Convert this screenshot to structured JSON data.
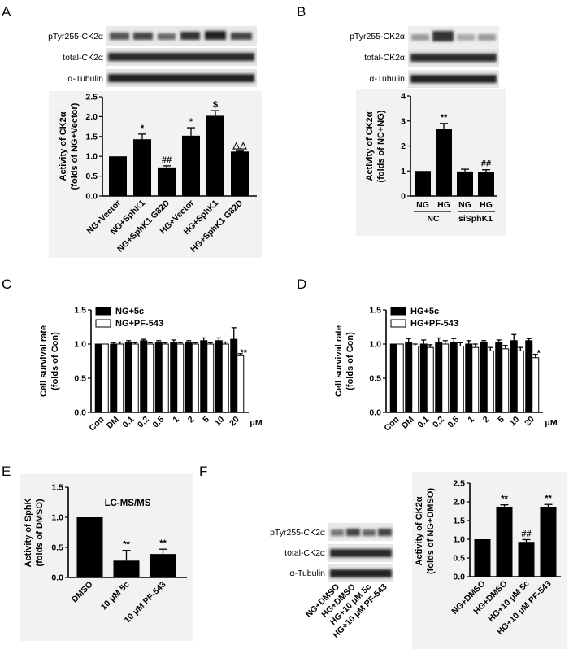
{
  "panels": {
    "A": {
      "label": "A",
      "blots": [
        "pTyr255-CK2α",
        "total-CK2α",
        "α-Tubulin"
      ],
      "ylabel": [
        "Activity of CK2α",
        "(folds of NG+Vector)"
      ],
      "yticks": [
        "0.0",
        "0.5",
        "1.0",
        "1.5",
        "2.0",
        "2.5"
      ]
    },
    "B": {
      "label": "B",
      "blots": [
        "pTyr255-CK2α",
        "total-CK2α",
        "α-Tubulin"
      ],
      "ylabel": [
        "Activity of CK2α",
        "(folds of NC+NG)"
      ],
      "yticks": [
        "0",
        "1",
        "2",
        "3",
        "4"
      ],
      "group_labels": [
        "NC",
        "siSphK1"
      ]
    },
    "C": {
      "label": "C",
      "ylabel": [
        "Cell survival rate",
        "(folds of Con)"
      ],
      "yticks": [
        "0.0",
        "0.5",
        "1.0",
        "1.5"
      ],
      "unit": "μM"
    },
    "D": {
      "label": "D",
      "ylabel": [
        "Cell survival rate",
        "(folds of Con)"
      ],
      "yticks": [
        "0.0",
        "0.5",
        "1.0",
        "1.5"
      ],
      "unit": "μM"
    },
    "E": {
      "label": "E",
      "ylabel": [
        "Activity of SphK",
        "(folds of DMSO)"
      ],
      "yticks": [
        "0.0",
        "0.5",
        "1.0",
        "1.5"
      ]
    },
    "F": {
      "label": "F",
      "blots": [
        "pTyr255-CK2α",
        "total-CK2α",
        "α-Tubulin"
      ],
      "blot_lanes": [
        "NG+DMSO",
        "HG+DMSO",
        "HG+10 μM 5c",
        "HG+10 μM PF-543"
      ],
      "ylabel": [
        "Activity of CK2α",
        "(folds of NG+DMSO)"
      ],
      "yticks": [
        "0.0",
        "0.5",
        "1.0",
        "1.5",
        "2.0",
        "2.5"
      ]
    }
  },
  "chart_data": [
    {
      "id": "A",
      "type": "bar",
      "ylim": [
        0,
        2.5
      ],
      "categories": [
        "NG+Vector",
        "NG+SphK1",
        "NG+SphK1 G82D",
        "HG+Vector",
        "HG+SphK1",
        "HG+SphK1 G82D"
      ],
      "values": [
        1.0,
        1.43,
        0.72,
        1.52,
        2.02,
        1.12
      ],
      "errors": [
        0,
        0.13,
        0.04,
        0.2,
        0.13,
        0.01
      ],
      "annotations": [
        "",
        "*",
        "##",
        "*",
        "$",
        "△△"
      ]
    },
    {
      "id": "B",
      "type": "bar",
      "ylim": [
        0,
        4
      ],
      "categories": [
        "NG",
        "HG",
        "NG",
        "HG"
      ],
      "values": [
        1.0,
        2.68,
        0.98,
        0.95
      ],
      "errors": [
        0,
        0.22,
        0.09,
        0.1
      ],
      "annotations": [
        "",
        "**",
        "",
        "##"
      ]
    },
    {
      "id": "C",
      "type": "bar",
      "ylim": [
        0,
        1.5
      ],
      "categories": [
        "Con",
        "DM",
        "0.1",
        "0.2",
        "0.5",
        "1",
        "2",
        "5",
        "10",
        "20"
      ],
      "series": [
        {
          "name": "NG+5c",
          "values": [
            1.0,
            1.0,
            1.03,
            1.05,
            1.03,
            1.02,
            1.03,
            1.05,
            1.05,
            1.07
          ],
          "errors": [
            0,
            0.02,
            0.02,
            0.02,
            0.02,
            0.04,
            0.02,
            0.04,
            0.04,
            0.17
          ]
        },
        {
          "name": "NG+PF-543",
          "values": [
            1.0,
            1.0,
            1.0,
            1.0,
            1.0,
            1.0,
            1.0,
            1.0,
            1.0,
            0.83
          ],
          "errors": [
            0,
            0.03,
            0.02,
            0.02,
            0.02,
            0.02,
            0.02,
            0.02,
            0.03,
            0.03
          ]
        }
      ],
      "annotations": [
        {
          "category": "20",
          "text": "**"
        }
      ]
    },
    {
      "id": "D",
      "type": "bar",
      "ylim": [
        0,
        1.5
      ],
      "categories": [
        "Con",
        "DM",
        "0.1",
        "0.2",
        "0.5",
        "1",
        "2",
        "5",
        "10",
        "20"
      ],
      "series": [
        {
          "name": "HG+5c",
          "values": [
            1.0,
            1.02,
            1.0,
            1.02,
            1.02,
            1.0,
            1.03,
            1.02,
            1.05,
            1.05
          ],
          "errors": [
            0,
            0.06,
            0.06,
            0.07,
            0.06,
            0.05,
            0.02,
            0.04,
            0.09,
            0.03
          ]
        },
        {
          "name": "HG+PF-543",
          "values": [
            1.0,
            0.97,
            0.95,
            1.0,
            0.97,
            0.95,
            0.9,
            0.93,
            0.9,
            0.8
          ],
          "errors": [
            0,
            0.03,
            0.04,
            0.05,
            0.05,
            0.05,
            0.05,
            0.05,
            0.05,
            0.05
          ]
        }
      ],
      "annotations": [
        {
          "category": "20",
          "text": "*"
        }
      ]
    },
    {
      "id": "E",
      "type": "bar",
      "ylim": [
        0,
        1.5
      ],
      "title": "LC-MS/MS",
      "categories": [
        "DMSO",
        "10 μM 5c",
        "10 μM PF-543"
      ],
      "values": [
        1.0,
        0.28,
        0.39
      ],
      "errors": [
        0,
        0.17,
        0.08
      ],
      "annotations": [
        "",
        "**",
        "**"
      ]
    },
    {
      "id": "F",
      "type": "bar",
      "ylim": [
        0,
        2.5
      ],
      "categories": [
        "NG+DMSO",
        "HG+DMSO",
        "HG+10 μM 5c",
        "HG+10 μM PF-543"
      ],
      "values": [
        1.0,
        1.87,
        0.93,
        1.87
      ],
      "errors": [
        0,
        0.05,
        0.06,
        0.06
      ],
      "annotations": [
        "",
        "**",
        "##",
        "**"
      ]
    }
  ]
}
